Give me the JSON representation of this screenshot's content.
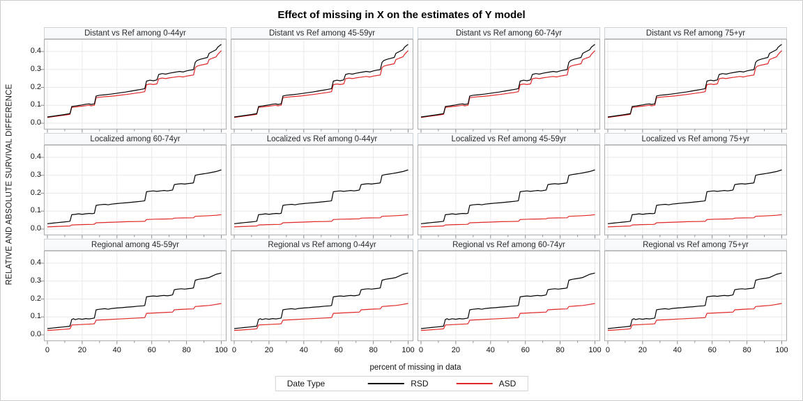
{
  "chart_data": {
    "type": "line",
    "title": "Effect of missing in X on the estimates of Y model",
    "ylabel": "RELATIVE AND ABSOLUTE SURVIVAL DIFFERENCE",
    "xlabel": "percent of missing in data",
    "xticks": [
      0,
      20,
      40,
      60,
      80,
      100
    ],
    "xminorticks": [
      10,
      30,
      50,
      70,
      90
    ],
    "ytick_labels": [
      "0.0",
      "0.1",
      "0.2",
      "0.3",
      "0.4"
    ],
    "ytick_values": [
      0.0,
      0.1,
      0.2,
      0.3,
      0.4
    ],
    "xlim": [
      -2,
      103
    ],
    "ylim": [
      -0.035,
      0.47
    ],
    "grid": true,
    "legend": {
      "title": "Date Type",
      "position": "bottom",
      "entries": [
        {
          "label": "RSD",
          "color": "#000000"
        },
        {
          "label": "ASD",
          "color": "#e02727"
        }
      ]
    },
    "colors": {
      "grid": "#e9e9e9",
      "panel_border": "#a9adb0",
      "tick": "#8c8c8c",
      "rsd": "#000000",
      "asd": "#e02727"
    },
    "rows": [
      {
        "series": "distant",
        "panel_titles": [
          "Distant vs Ref among 0-44yr",
          "Distant vs Ref among 45-59yr",
          "Distant vs Ref among 60-74yr",
          "Distant vs Ref among 75+yr"
        ]
      },
      {
        "series": "localized",
        "panel_titles": [
          "Localized  among 60-74yr",
          "Localized vs Ref among 0-44yr",
          "Localized vs Ref among 45-59yr",
          "Localized vs Ref among 75+yr"
        ]
      },
      {
        "series": "regional",
        "panel_titles": [
          "Regional  among 45-59yr",
          "Regional vs Ref among 0-44yr",
          "Regional vs Ref among 60-74yr",
          "Regional vs Ref among 75+yr"
        ]
      }
    ],
    "series": {
      "distant": {
        "RSD": [
          [
            0,
            0.035
          ],
          [
            3,
            0.039
          ],
          [
            6,
            0.043
          ],
          [
            9,
            0.047
          ],
          [
            12,
            0.052
          ],
          [
            13,
            0.054
          ],
          [
            14,
            0.093
          ],
          [
            16,
            0.096
          ],
          [
            18,
            0.099
          ],
          [
            20,
            0.102
          ],
          [
            22,
            0.106
          ],
          [
            24,
            0.108
          ],
          [
            25,
            0.105
          ],
          [
            27,
            0.108
          ],
          [
            28,
            0.152
          ],
          [
            30,
            0.156
          ],
          [
            33,
            0.159
          ],
          [
            36,
            0.162
          ],
          [
            39,
            0.166
          ],
          [
            42,
            0.17
          ],
          [
            45,
            0.174
          ],
          [
            48,
            0.179
          ],
          [
            51,
            0.184
          ],
          [
            54,
            0.189
          ],
          [
            56,
            0.193
          ],
          [
            57,
            0.235
          ],
          [
            59,
            0.24
          ],
          [
            61,
            0.237
          ],
          [
            63,
            0.242
          ],
          [
            64,
            0.272
          ],
          [
            66,
            0.277
          ],
          [
            68,
            0.274
          ],
          [
            70,
            0.279
          ],
          [
            73,
            0.284
          ],
          [
            76,
            0.289
          ],
          [
            78,
            0.286
          ],
          [
            80,
            0.292
          ],
          [
            82,
            0.296
          ],
          [
            84,
            0.299
          ],
          [
            85,
            0.34
          ],
          [
            86,
            0.35
          ],
          [
            88,
            0.357
          ],
          [
            90,
            0.362
          ],
          [
            92,
            0.367
          ],
          [
            93,
            0.39
          ],
          [
            95,
            0.4
          ],
          [
            97,
            0.41
          ],
          [
            98,
            0.425
          ],
          [
            100,
            0.44
          ]
        ],
        "ASD": [
          [
            0,
            0.032
          ],
          [
            3,
            0.036
          ],
          [
            6,
            0.04
          ],
          [
            9,
            0.044
          ],
          [
            12,
            0.048
          ],
          [
            13,
            0.05
          ],
          [
            14,
            0.088
          ],
          [
            16,
            0.09
          ],
          [
            18,
            0.093
          ],
          [
            20,
            0.095
          ],
          [
            22,
            0.098
          ],
          [
            24,
            0.1
          ],
          [
            25,
            0.097
          ],
          [
            27,
            0.1
          ],
          [
            28,
            0.142
          ],
          [
            30,
            0.145
          ],
          [
            33,
            0.148
          ],
          [
            36,
            0.15
          ],
          [
            39,
            0.153
          ],
          [
            42,
            0.157
          ],
          [
            45,
            0.16
          ],
          [
            48,
            0.164
          ],
          [
            51,
            0.168
          ],
          [
            54,
            0.172
          ],
          [
            56,
            0.176
          ],
          [
            57,
            0.215
          ],
          [
            59,
            0.219
          ],
          [
            61,
            0.216
          ],
          [
            63,
            0.22
          ],
          [
            64,
            0.248
          ],
          [
            66,
            0.252
          ],
          [
            68,
            0.249
          ],
          [
            70,
            0.253
          ],
          [
            73,
            0.257
          ],
          [
            76,
            0.261
          ],
          [
            78,
            0.258
          ],
          [
            80,
            0.263
          ],
          [
            82,
            0.266
          ],
          [
            84,
            0.269
          ],
          [
            85,
            0.31
          ],
          [
            86,
            0.318
          ],
          [
            88,
            0.324
          ],
          [
            90,
            0.328
          ],
          [
            92,
            0.332
          ],
          [
            93,
            0.355
          ],
          [
            95,
            0.363
          ],
          [
            97,
            0.37
          ],
          [
            98,
            0.385
          ],
          [
            100,
            0.405
          ]
        ]
      },
      "localized": {
        "RSD": [
          [
            0,
            0.03
          ],
          [
            3,
            0.033
          ],
          [
            6,
            0.036
          ],
          [
            9,
            0.039
          ],
          [
            12,
            0.042
          ],
          [
            13,
            0.044
          ],
          [
            14,
            0.08
          ],
          [
            16,
            0.082
          ],
          [
            18,
            0.085
          ],
          [
            20,
            0.082
          ],
          [
            22,
            0.085
          ],
          [
            24,
            0.087
          ],
          [
            26,
            0.086
          ],
          [
            27,
            0.088
          ],
          [
            28,
            0.132
          ],
          [
            30,
            0.135
          ],
          [
            33,
            0.138
          ],
          [
            35,
            0.135
          ],
          [
            37,
            0.139
          ],
          [
            40,
            0.142
          ],
          [
            43,
            0.145
          ],
          [
            46,
            0.147
          ],
          [
            49,
            0.15
          ],
          [
            52,
            0.153
          ],
          [
            55,
            0.156
          ],
          [
            56,
            0.158
          ],
          [
            57,
            0.208
          ],
          [
            59,
            0.211
          ],
          [
            61,
            0.213
          ],
          [
            63,
            0.21
          ],
          [
            65,
            0.213
          ],
          [
            67,
            0.215
          ],
          [
            69,
            0.213
          ],
          [
            71,
            0.216
          ],
          [
            72,
            0.218
          ],
          [
            73,
            0.248
          ],
          [
            75,
            0.251
          ],
          [
            77,
            0.253
          ],
          [
            79,
            0.251
          ],
          [
            81,
            0.254
          ],
          [
            83,
            0.256
          ],
          [
            84,
            0.258
          ],
          [
            85,
            0.3
          ],
          [
            87,
            0.304
          ],
          [
            89,
            0.307
          ],
          [
            91,
            0.31
          ],
          [
            93,
            0.313
          ],
          [
            95,
            0.317
          ],
          [
            97,
            0.321
          ],
          [
            100,
            0.33
          ]
        ],
        "ASD": [
          [
            0,
            0.012
          ],
          [
            5,
            0.014
          ],
          [
            10,
            0.016
          ],
          [
            13,
            0.017
          ],
          [
            14,
            0.023
          ],
          [
            20,
            0.025
          ],
          [
            26,
            0.026
          ],
          [
            27,
            0.027
          ],
          [
            28,
            0.035
          ],
          [
            34,
            0.037
          ],
          [
            40,
            0.039
          ],
          [
            46,
            0.041
          ],
          [
            52,
            0.042
          ],
          [
            56,
            0.043
          ],
          [
            57,
            0.053
          ],
          [
            62,
            0.055
          ],
          [
            67,
            0.056
          ],
          [
            72,
            0.057
          ],
          [
            73,
            0.061
          ],
          [
            78,
            0.062
          ],
          [
            84,
            0.063
          ],
          [
            85,
            0.071
          ],
          [
            90,
            0.073
          ],
          [
            94,
            0.075
          ],
          [
            97,
            0.077
          ],
          [
            100,
            0.08
          ]
        ]
      },
      "regional": {
        "RSD": [
          [
            0,
            0.035
          ],
          [
            3,
            0.038
          ],
          [
            6,
            0.041
          ],
          [
            9,
            0.044
          ],
          [
            12,
            0.047
          ],
          [
            13,
            0.049
          ],
          [
            14,
            0.086
          ],
          [
            15,
            0.09
          ],
          [
            16,
            0.085
          ],
          [
            18,
            0.09
          ],
          [
            20,
            0.087
          ],
          [
            22,
            0.091
          ],
          [
            24,
            0.089
          ],
          [
            26,
            0.092
          ],
          [
            27,
            0.094
          ],
          [
            28,
            0.14
          ],
          [
            30,
            0.143
          ],
          [
            33,
            0.146
          ],
          [
            35,
            0.143
          ],
          [
            37,
            0.147
          ],
          [
            40,
            0.15
          ],
          [
            43,
            0.152
          ],
          [
            46,
            0.155
          ],
          [
            49,
            0.157
          ],
          [
            52,
            0.16
          ],
          [
            55,
            0.162
          ],
          [
            56,
            0.164
          ],
          [
            57,
            0.212
          ],
          [
            59,
            0.215
          ],
          [
            61,
            0.217
          ],
          [
            63,
            0.215
          ],
          [
            65,
            0.218
          ],
          [
            67,
            0.22
          ],
          [
            69,
            0.218
          ],
          [
            71,
            0.221
          ],
          [
            72,
            0.223
          ],
          [
            73,
            0.252
          ],
          [
            75,
            0.255
          ],
          [
            77,
            0.257
          ],
          [
            79,
            0.255
          ],
          [
            81,
            0.258
          ],
          [
            83,
            0.26
          ],
          [
            84,
            0.262
          ],
          [
            85,
            0.305
          ],
          [
            87,
            0.31
          ],
          [
            89,
            0.313
          ],
          [
            91,
            0.316
          ],
          [
            93,
            0.32
          ],
          [
            95,
            0.329
          ],
          [
            97,
            0.338
          ],
          [
            100,
            0.345
          ]
        ],
        "ASD": [
          [
            0,
            0.025
          ],
          [
            4,
            0.027
          ],
          [
            8,
            0.03
          ],
          [
            12,
            0.033
          ],
          [
            13,
            0.034
          ],
          [
            14,
            0.055
          ],
          [
            18,
            0.057
          ],
          [
            22,
            0.059
          ],
          [
            26,
            0.061
          ],
          [
            27,
            0.062
          ],
          [
            28,
            0.082
          ],
          [
            32,
            0.084
          ],
          [
            36,
            0.086
          ],
          [
            40,
            0.088
          ],
          [
            44,
            0.09
          ],
          [
            48,
            0.092
          ],
          [
            52,
            0.094
          ],
          [
            56,
            0.096
          ],
          [
            57,
            0.12
          ],
          [
            61,
            0.122
          ],
          [
            65,
            0.124
          ],
          [
            69,
            0.126
          ],
          [
            72,
            0.127
          ],
          [
            73,
            0.14
          ],
          [
            77,
            0.142
          ],
          [
            81,
            0.144
          ],
          [
            84,
            0.145
          ],
          [
            85,
            0.158
          ],
          [
            89,
            0.161
          ],
          [
            93,
            0.164
          ],
          [
            96,
            0.168
          ],
          [
            100,
            0.175
          ]
        ]
      }
    }
  }
}
